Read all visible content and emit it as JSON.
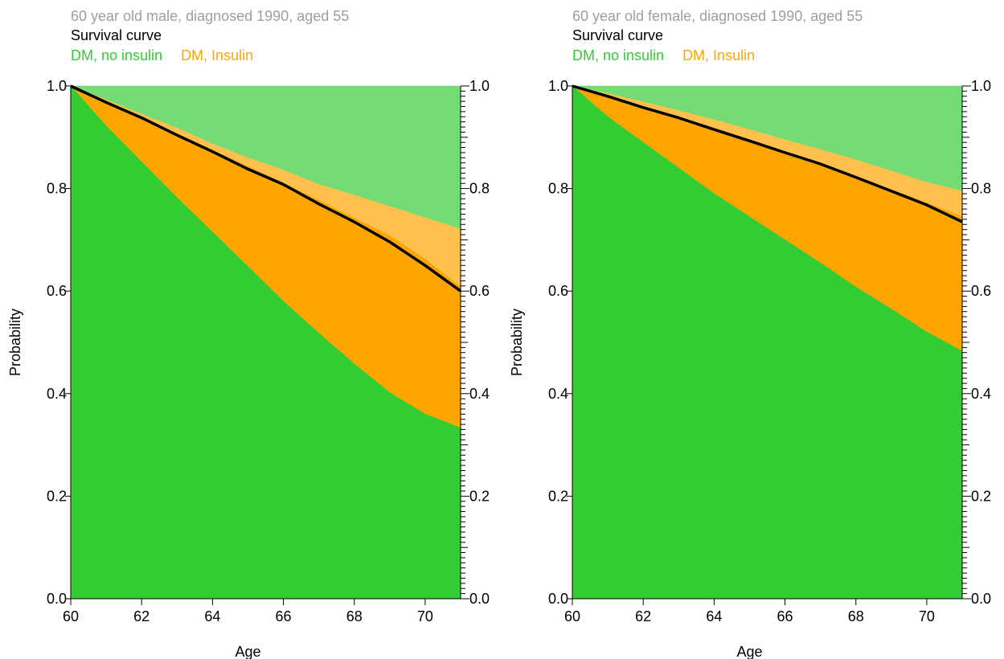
{
  "colors": {
    "no_insulin": "#33cc33",
    "insulin": "#ffa500",
    "insulin_light": "#ffc14d",
    "no_insulin_light": "#75dc75",
    "survival": "#000000",
    "subtitle": "#9e9e9e"
  },
  "chart_data": [
    {
      "type": "area",
      "subtitle": "60 year old male, diagnosed 1990, aged 55",
      "title": "Survival curve",
      "legend": [
        "DM, no insulin",
        "DM, Insulin"
      ],
      "xlabel": "Age",
      "ylabel": "Probability",
      "xlim": [
        60,
        71
      ],
      "ylim": [
        0,
        1
      ],
      "x_ticks": [
        60,
        62,
        64,
        66,
        68,
        70
      ],
      "y_ticks": [
        0.0,
        0.2,
        0.4,
        0.6,
        0.8,
        1.0
      ],
      "y_tick_labels": [
        "0.0",
        "0.2",
        "0.4",
        "0.6",
        "0.8",
        "1.0"
      ],
      "x": [
        60,
        61,
        62,
        63,
        64,
        65,
        66,
        67,
        68,
        69,
        70,
        71
      ],
      "series": [
        {
          "name": "DM, no insulin",
          "values": [
            1.0,
            0.922,
            0.852,
            0.782,
            0.715,
            0.648,
            0.58,
            0.518,
            0.458,
            0.402,
            0.36,
            0.333
          ]
        },
        {
          "name": "DM, Insulin",
          "values": [
            1.0,
            0.968,
            0.938,
            0.907,
            0.875,
            0.843,
            0.811,
            0.777,
            0.742,
            0.708,
            0.662,
            0.608
          ]
        },
        {
          "name": "DM, Insulin (upper)",
          "values": [
            1.0,
            0.973,
            0.945,
            0.918,
            0.887,
            0.86,
            0.836,
            0.808,
            0.787,
            0.765,
            0.743,
            0.721
          ]
        },
        {
          "name": "Survival curve",
          "values": [
            1.0,
            0.968,
            0.938,
            0.904,
            0.872,
            0.838,
            0.808,
            0.77,
            0.735,
            0.696,
            0.65,
            0.6
          ]
        }
      ]
    },
    {
      "type": "area",
      "subtitle": "60 year old female, diagnosed 1990, aged 55",
      "title": "Survival curve",
      "legend": [
        "DM, no insulin",
        "DM, Insulin"
      ],
      "xlabel": "Age",
      "ylabel": "Probability",
      "xlim": [
        60,
        71
      ],
      "ylim": [
        0,
        1
      ],
      "x_ticks": [
        60,
        62,
        64,
        66,
        68,
        70
      ],
      "y_ticks": [
        0.0,
        0.2,
        0.4,
        0.6,
        0.8,
        1.0
      ],
      "y_tick_labels": [
        "0.0",
        "0.2",
        "0.4",
        "0.6",
        "0.8",
        "1.0"
      ],
      "x": [
        60,
        61,
        62,
        63,
        64,
        65,
        66,
        67,
        68,
        69,
        70,
        71
      ],
      "series": [
        {
          "name": "DM, no insulin",
          "values": [
            1.0,
            0.94,
            0.89,
            0.84,
            0.79,
            0.745,
            0.7,
            0.655,
            0.608,
            0.565,
            0.52,
            0.483
          ]
        },
        {
          "name": "DM, Insulin",
          "values": [
            1.0,
            0.98,
            0.96,
            0.94,
            0.918,
            0.895,
            0.87,
            0.848,
            0.823,
            0.798,
            0.772,
            0.745
          ]
        },
        {
          "name": "DM, Insulin (upper)",
          "values": [
            1.0,
            0.985,
            0.969,
            0.952,
            0.934,
            0.915,
            0.895,
            0.876,
            0.856,
            0.834,
            0.812,
            0.795
          ]
        },
        {
          "name": "Survival curve",
          "values": [
            1.0,
            0.98,
            0.958,
            0.938,
            0.915,
            0.893,
            0.87,
            0.848,
            0.822,
            0.795,
            0.768,
            0.735
          ]
        }
      ]
    }
  ]
}
